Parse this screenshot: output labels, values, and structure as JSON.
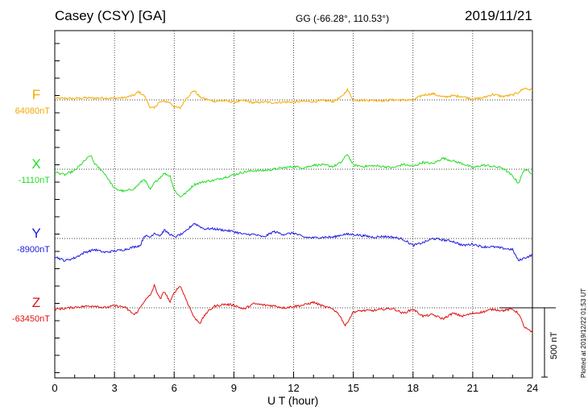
{
  "header": {
    "station": "Casey (CSY)  [GA]",
    "coordinates": "GG (-66.28°, 110.53°)",
    "date": "2019/11/21"
  },
  "footer": {
    "plotted_note": "Plotted at 2019/12/22 01:53 UT",
    "scale_label": "500 nT"
  },
  "chart_data": {
    "type": "line",
    "title": "",
    "xlabel": "U T (hour)",
    "xlim": [
      0,
      24
    ],
    "xticks": [
      0,
      3,
      6,
      9,
      12,
      15,
      18,
      21,
      24
    ],
    "grid": true,
    "scale_bar_nT": 500,
    "series": [
      {
        "name": "F",
        "baseline_label": "64080nT",
        "baseline_nT": 64080,
        "color": "#f5a900",
        "x": [
          0,
          0.5,
          1,
          1.5,
          2,
          2.5,
          3,
          3.5,
          4,
          4.2,
          4.5,
          4.8,
          5,
          5.2,
          5.5,
          5.8,
          6,
          6.3,
          6.6,
          7,
          7.3,
          7.6,
          8,
          8.5,
          9,
          9.5,
          10,
          10.5,
          11,
          11.5,
          12,
          12.5,
          13,
          13.5,
          14,
          14.4,
          14.7,
          15,
          15.5,
          16,
          16.5,
          17,
          17.5,
          18,
          18.5,
          19,
          19.5,
          20,
          20.5,
          21,
          21.5,
          22,
          22.5,
          23,
          23.3,
          23.6,
          24
        ],
        "values": [
          10,
          12,
          10,
          15,
          13,
          14,
          12,
          16,
          35,
          60,
          30,
          -55,
          -60,
          -20,
          -10,
          -20,
          -50,
          -60,
          10,
          70,
          20,
          5,
          -10,
          -5,
          -15,
          -5,
          -20,
          -15,
          -20,
          -15,
          -15,
          -10,
          -12,
          -5,
          -10,
          20,
          75,
          0,
          -2,
          -2,
          -5,
          0,
          -2,
          0,
          35,
          45,
          20,
          30,
          25,
          5,
          15,
          40,
          25,
          35,
          55,
          85,
          70
        ]
      },
      {
        "name": "X",
        "baseline_label": "-1110nT",
        "baseline_nT": -1110,
        "color": "#22dd22",
        "x": [
          0,
          0.5,
          1,
          1.5,
          1.8,
          2,
          2.5,
          3,
          3.5,
          4,
          4.5,
          4.8,
          5,
          5.5,
          5.8,
          6,
          6.3,
          6.6,
          7,
          7.5,
          8,
          8.5,
          9,
          9.5,
          10,
          10.5,
          11,
          11.5,
          12,
          12.5,
          13,
          13.5,
          14,
          14.4,
          14.7,
          15,
          15.5,
          16,
          16.5,
          17,
          17.5,
          18,
          18.5,
          19,
          19.5,
          20,
          20.5,
          21,
          21.5,
          22,
          22.5,
          23,
          23.3,
          23.6,
          24
        ],
        "values": [
          -20,
          -40,
          -10,
          60,
          100,
          40,
          -30,
          -140,
          -160,
          -140,
          -70,
          -150,
          -100,
          -30,
          -50,
          -150,
          -200,
          -170,
          -110,
          -90,
          -80,
          -60,
          -40,
          -20,
          -10,
          -10,
          0,
          10,
          20,
          10,
          30,
          30,
          20,
          50,
          110,
          30,
          20,
          25,
          20,
          10,
          35,
          20,
          50,
          40,
          80,
          60,
          40,
          10,
          30,
          20,
          10,
          -50,
          -100,
          0,
          -30
        ]
      },
      {
        "name": "Y",
        "baseline_label": "-8900nT",
        "baseline_nT": -8900,
        "color": "#1a1ae0",
        "x": [
          0,
          0.5,
          1,
          1.5,
          2,
          2.5,
          3,
          3.5,
          4,
          4.3,
          4.5,
          4.8,
          5,
          5.3,
          5.5,
          5.8,
          6,
          6.5,
          7,
          7.5,
          8,
          8.5,
          9,
          9.5,
          10,
          10.5,
          11,
          11.5,
          12,
          12.5,
          13,
          13.5,
          14,
          14.5,
          15,
          15.5,
          16,
          16.5,
          17,
          17.5,
          18,
          18.5,
          19,
          19.5,
          20,
          20.5,
          21,
          21.5,
          22,
          22.5,
          23,
          23.3,
          23.6,
          24
        ],
        "values": [
          -130,
          -160,
          -140,
          -100,
          -80,
          -100,
          -90,
          -80,
          -60,
          -50,
          20,
          10,
          40,
          20,
          60,
          30,
          10,
          40,
          110,
          70,
          70,
          60,
          50,
          30,
          30,
          10,
          50,
          30,
          40,
          10,
          5,
          10,
          10,
          30,
          30,
          20,
          10,
          15,
          10,
          -5,
          -50,
          -30,
          0,
          -10,
          -20,
          -50,
          -40,
          -60,
          -60,
          -70,
          -80,
          -160,
          -140,
          -120
        ]
      },
      {
        "name": "Z",
        "baseline_label": "-63450nT",
        "baseline_nT": -63450,
        "color": "#e01010",
        "x": [
          0,
          0.5,
          1,
          1.5,
          2,
          2.5,
          3,
          3.5,
          4,
          4.2,
          4.5,
          4.8,
          5,
          5.3,
          5.5,
          5.8,
          6,
          6.3,
          6.6,
          7,
          7.3,
          7.6,
          8,
          8.5,
          9,
          9.5,
          10,
          10.5,
          11,
          11.5,
          12,
          12.5,
          13,
          13.5,
          14,
          14.3,
          14.6,
          15,
          15.5,
          16,
          16.5,
          17,
          17.5,
          18,
          18.5,
          19,
          19.5,
          20,
          20.5,
          21,
          21.5,
          22,
          22.5,
          23,
          23.3,
          23.6,
          24
        ],
        "values": [
          -10,
          -5,
          5,
          10,
          15,
          0,
          15,
          5,
          -50,
          -20,
          50,
          90,
          160,
          60,
          120,
          40,
          110,
          160,
          60,
          -70,
          -110,
          -40,
          10,
          25,
          20,
          -10,
          30,
          20,
          15,
          0,
          10,
          20,
          40,
          10,
          -10,
          -50,
          -130,
          -30,
          -20,
          -20,
          -10,
          -5,
          -40,
          -10,
          -60,
          -50,
          -80,
          -40,
          -60,
          -40,
          -30,
          -10,
          -20,
          -10,
          -40,
          -140,
          -180
        ]
      }
    ]
  }
}
